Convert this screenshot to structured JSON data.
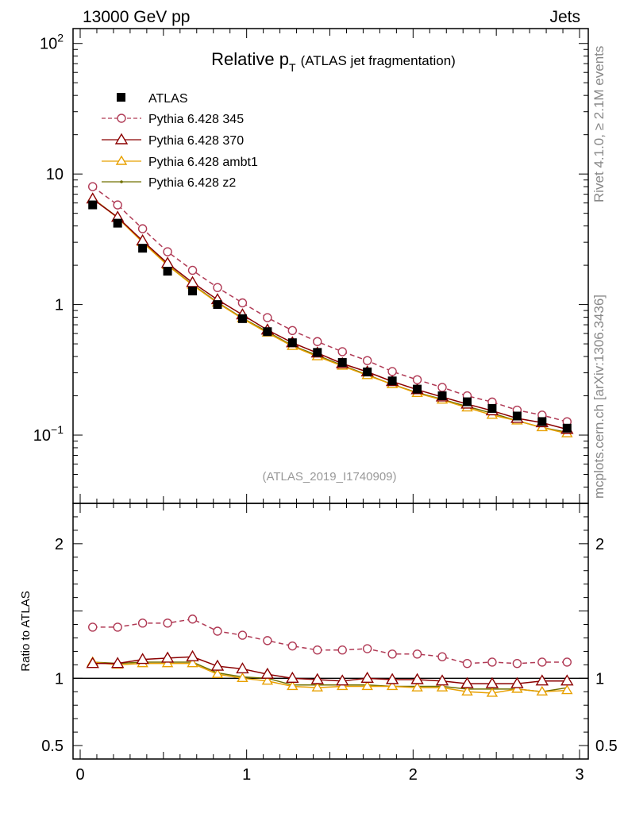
{
  "header": {
    "left": "13000 GeV pp",
    "right": "Jets"
  },
  "side_text": {
    "top": "Rivet 4.1.0, ≥ 2.1M events",
    "bottom": "mcplots.cern.ch [arXiv:1306.3436]"
  },
  "chart_data": {
    "type": "line",
    "title": {
      "main": "Relative p",
      "sub": "T",
      "note": "(ATLAS jet fragmentation)"
    },
    "analysis": "(ATLAS_2019_I1740909)",
    "main_y_ticks": [
      {
        "base": "10",
        "exp": "2"
      },
      {
        "base": "10",
        "exp": ""
      },
      {
        "base": "1",
        "exp": ""
      },
      {
        "base": "10",
        "exp": "−1"
      }
    ],
    "ratio_ylabel": "Ratio to ATLAS",
    "ratio_y_ticks": [
      "2",
      "1",
      "0.5"
    ],
    "x_ticks": [
      "0",
      "1",
      "2",
      "3"
    ],
    "xlim": [
      0,
      3.0
    ],
    "ylim_main": [
      0.03,
      130
    ],
    "ylim_ratio": [
      0.4,
      2.3
    ],
    "x": [
      0.075,
      0.225,
      0.375,
      0.525,
      0.675,
      0.825,
      0.975,
      1.125,
      1.275,
      1.425,
      1.575,
      1.725,
      1.875,
      2.025,
      2.175,
      2.325,
      2.475,
      2.625,
      2.775,
      2.925
    ],
    "data": {
      "name": "ATLAS",
      "values": [
        5.8,
        4.2,
        2.7,
        1.8,
        1.27,
        1.0,
        0.78,
        0.62,
        0.51,
        0.43,
        0.36,
        0.305,
        0.26,
        0.225,
        0.2,
        0.18,
        0.16,
        0.14,
        0.127,
        0.113
      ]
    },
    "series": [
      {
        "name": "Pythia 6.428 345",
        "color": "#b03a55",
        "marker": "circle",
        "dashed": true,
        "ratio": [
          1.38,
          1.38,
          1.41,
          1.41,
          1.44,
          1.35,
          1.32,
          1.28,
          1.24,
          1.21,
          1.21,
          1.22,
          1.18,
          1.18,
          1.16,
          1.11,
          1.12,
          1.11,
          1.12,
          1.12
        ]
      },
      {
        "name": "Pythia 6.428 370",
        "color": "#8b0000",
        "marker": "triangle-open",
        "dashed": false,
        "ratio": [
          1.11,
          1.11,
          1.14,
          1.15,
          1.16,
          1.09,
          1.07,
          1.03,
          1.0,
          0.99,
          0.98,
          1.0,
          0.99,
          0.99,
          0.98,
          0.96,
          0.96,
          0.96,
          0.98,
          0.98
        ]
      },
      {
        "name": "Pythia 6.428 ambt1",
        "color": "#e8a000",
        "marker": "triangle-small",
        "dashed": false,
        "ratio": [
          1.12,
          1.1,
          1.11,
          1.11,
          1.11,
          1.03,
          1.0,
          0.98,
          0.94,
          0.93,
          0.94,
          0.94,
          0.94,
          0.93,
          0.93,
          0.9,
          0.89,
          0.92,
          0.9,
          0.91
        ]
      },
      {
        "name": "Pythia 6.428 z2",
        "color": "#707000",
        "marker": "dot",
        "dashed": false,
        "ratio": [
          1.12,
          1.11,
          1.12,
          1.12,
          1.12,
          1.04,
          1.01,
          1.0,
          0.95,
          0.95,
          0.95,
          0.95,
          0.94,
          0.94,
          0.94,
          0.92,
          0.92,
          0.92,
          0.9,
          0.93
        ]
      }
    ]
  }
}
